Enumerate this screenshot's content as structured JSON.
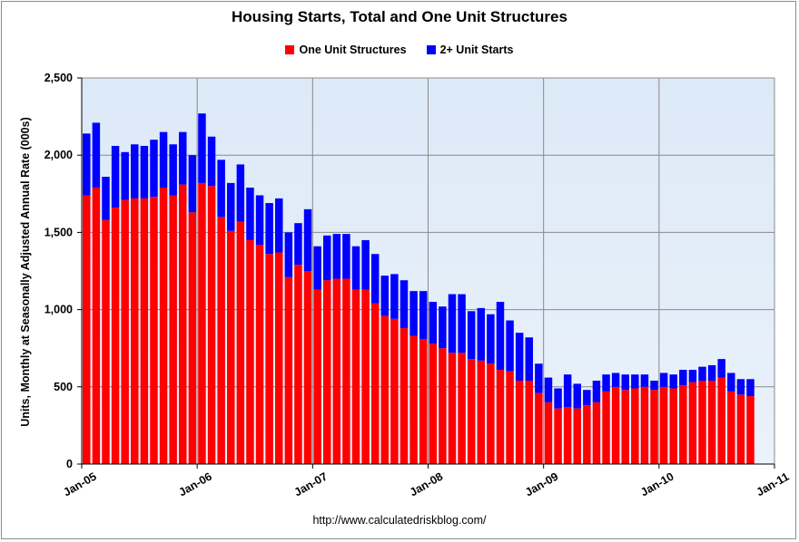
{
  "chart_data": {
    "type": "bar",
    "stacked": true,
    "title": "Housing Starts, Total and One Unit Structures",
    "ylabel": "Units, Monthly at Seasonally Adjusted Annual Rate (000s)",
    "xlabel": "",
    "ylim": [
      0,
      2500
    ],
    "yticks": [
      0,
      500,
      1000,
      1500,
      2000,
      2500
    ],
    "ytick_labels": [
      "0",
      "500",
      "1,000",
      "1,500",
      "2,000",
      "2,500"
    ],
    "xtick_labels": [
      "Jan-05",
      "Jan-06",
      "Jan-07",
      "Jan-08",
      "Jan-09",
      "Jan-10",
      "Jan-11"
    ],
    "x_start": "Jan-05",
    "x_months": 72,
    "grid": true,
    "legend_position": "top-center",
    "series": [
      {
        "name": "One Unit Structures",
        "color": "#ff0000",
        "values": [
          1740,
          1790,
          1580,
          1660,
          1710,
          1720,
          1720,
          1730,
          1790,
          1740,
          1810,
          1630,
          1820,
          1800,
          1600,
          1510,
          1570,
          1450,
          1420,
          1360,
          1370,
          1210,
          1290,
          1250,
          1130,
          1190,
          1200,
          1200,
          1130,
          1130,
          1040,
          960,
          940,
          880,
          830,
          810,
          780,
          750,
          720,
          720,
          680,
          670,
          650,
          610,
          600,
          540,
          540,
          460,
          400,
          360,
          370,
          360,
          380,
          400,
          470,
          500,
          480,
          490,
          500,
          480,
          500,
          490,
          510,
          530,
          540,
          540,
          560,
          470,
          450,
          440
        ]
      },
      {
        "name": "2+ Unit Starts",
        "color": "#0000ff",
        "values": [
          400,
          420,
          280,
          400,
          310,
          350,
          340,
          370,
          360,
          330,
          340,
          370,
          450,
          320,
          370,
          310,
          370,
          340,
          320,
          330,
          350,
          290,
          270,
          400,
          280,
          290,
          290,
          290,
          280,
          320,
          320,
          260,
          290,
          310,
          290,
          310,
          270,
          270,
          380,
          380,
          310,
          340,
          320,
          440,
          330,
          310,
          280,
          190,
          160,
          130,
          210,
          160,
          100,
          140,
          110,
          90,
          100,
          90,
          80,
          60,
          90,
          90,
          100,
          80,
          90,
          100,
          120,
          120,
          100,
          110
        ]
      }
    ]
  },
  "source": "http://www.calculatedriskblog.com/"
}
